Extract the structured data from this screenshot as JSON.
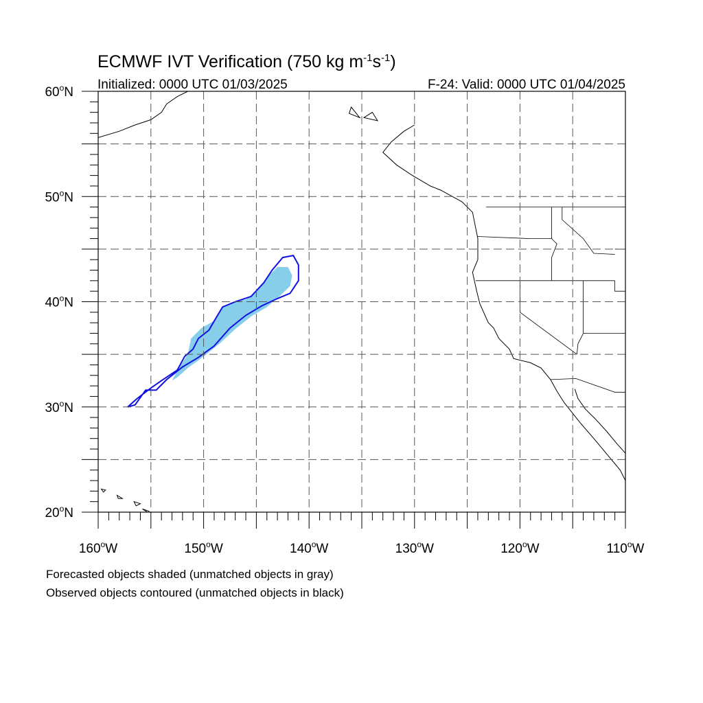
{
  "title": {
    "main_prefix": "ECMWF IVT Verification (750 kg m",
    "exp1": "-1",
    "mid": "s",
    "exp2": "-1",
    "main_suffix": ")",
    "initialized": "Initialized: 0000 UTC 01/03/2025",
    "valid": "F-24: Valid: 0000 UTC 01/04/2025"
  },
  "map": {
    "lon_range": [
      -160,
      -110
    ],
    "lat_range": [
      20,
      60
    ],
    "grid_lon_step": 5,
    "grid_lat_step": 5,
    "gridlines": "dashed gray",
    "lon_labels": [
      {
        "lon": -160,
        "text": "160",
        "hem": "W"
      },
      {
        "lon": -150,
        "text": "150",
        "hem": "W"
      },
      {
        "lon": -140,
        "text": "140",
        "hem": "W"
      },
      {
        "lon": -130,
        "text": "130",
        "hem": "W"
      },
      {
        "lon": -120,
        "text": "120",
        "hem": "W"
      },
      {
        "lon": -110,
        "text": "110",
        "hem": "W"
      }
    ],
    "lat_labels": [
      {
        "lat": 60,
        "text": "60",
        "hem": "N"
      },
      {
        "lat": 50,
        "text": "50",
        "hem": "N"
      },
      {
        "lat": 40,
        "text": "40",
        "hem": "N"
      },
      {
        "lat": 30,
        "text": "30",
        "hem": "N"
      },
      {
        "lat": 20,
        "text": "20",
        "hem": "N"
      }
    ],
    "forecast_object": {
      "color": "#87CEEB",
      "outline_lonlat": [
        [
          -153.0,
          32.5
        ],
        [
          -152.3,
          33.8
        ],
        [
          -151.5,
          35.0
        ],
        [
          -151.2,
          36.5
        ],
        [
          -150.2,
          37.5
        ],
        [
          -149.0,
          38.2
        ],
        [
          -148.2,
          39.5
        ],
        [
          -147.2,
          40.0
        ],
        [
          -146.0,
          40.2
        ],
        [
          -145.0,
          41.0
        ],
        [
          -144.0,
          42.3
        ],
        [
          -143.0,
          43.3
        ],
        [
          -142.0,
          43.3
        ],
        [
          -141.6,
          42.5
        ],
        [
          -141.8,
          41.5
        ],
        [
          -142.8,
          40.5
        ],
        [
          -144.0,
          39.5
        ],
        [
          -145.5,
          38.6
        ],
        [
          -147.0,
          37.4
        ],
        [
          -148.5,
          36.0
        ],
        [
          -150.0,
          34.8
        ],
        [
          -151.5,
          33.7
        ],
        [
          -152.5,
          32.8
        ]
      ]
    },
    "observed_object": {
      "color": "#1010e0",
      "outline_lonlat": [
        [
          -157.2,
          30.0
        ],
        [
          -156.3,
          30.8
        ],
        [
          -155.0,
          31.8
        ],
        [
          -154.0,
          32.5
        ],
        [
          -152.5,
          33.5
        ],
        [
          -151.8,
          34.8
        ],
        [
          -151.0,
          35.5
        ],
        [
          -150.5,
          36.5
        ],
        [
          -149.5,
          37.3
        ],
        [
          -148.8,
          38.5
        ],
        [
          -148.2,
          39.5
        ],
        [
          -147.0,
          40.0
        ],
        [
          -145.5,
          40.5
        ],
        [
          -144.3,
          41.8
        ],
        [
          -143.5,
          43.0
        ],
        [
          -142.5,
          44.2
        ],
        [
          -141.5,
          44.4
        ],
        [
          -141.0,
          43.5
        ],
        [
          -141.0,
          42.0
        ],
        [
          -141.8,
          40.8
        ],
        [
          -143.0,
          40.3
        ],
        [
          -144.5,
          39.6
        ],
        [
          -146.0,
          38.7
        ],
        [
          -147.5,
          37.5
        ],
        [
          -149.0,
          35.8
        ],
        [
          -150.5,
          34.7
        ],
        [
          -152.0,
          33.8
        ],
        [
          -153.5,
          32.6
        ],
        [
          -154.5,
          31.6
        ],
        [
          -155.5,
          31.6
        ],
        [
          -156.5,
          30.2
        ]
      ]
    },
    "coastline_lonlat": [
      [
        -130.0,
        56.8
      ],
      [
        -131.0,
        56.2
      ],
      [
        -132.2,
        55.2
      ],
      [
        -133.0,
        54.2
      ],
      [
        -131.7,
        53.0
      ],
      [
        -130.2,
        52.0
      ],
      [
        -128.5,
        51.0
      ],
      [
        -127.5,
        50.6
      ],
      [
        -125.5,
        49.5
      ],
      [
        -124.5,
        48.5
      ],
      [
        -124.2,
        47.0
      ],
      [
        -124.0,
        46.0
      ],
      [
        -124.0,
        44.0
      ],
      [
        -124.5,
        42.8
      ],
      [
        -124.1,
        41.0
      ],
      [
        -123.8,
        39.8
      ],
      [
        -123.0,
        38.0
      ],
      [
        -122.5,
        37.5
      ],
      [
        -122.0,
        36.5
      ],
      [
        -121.0,
        35.5
      ],
      [
        -120.6,
        34.6
      ],
      [
        -119.0,
        34.2
      ],
      [
        -118.0,
        33.7
      ],
      [
        -117.1,
        32.6
      ],
      [
        -116.5,
        31.5
      ],
      [
        -115.8,
        30.4
      ],
      [
        -114.3,
        28.5
      ],
      [
        -113.0,
        27.0
      ],
      [
        -112.0,
        25.8
      ],
      [
        -110.5,
        24.0
      ],
      [
        -110.0,
        23.0
      ]
    ],
    "alaska_coast_lonlat": [
      [
        -160.0,
        55.6
      ],
      [
        -158.0,
        56.2
      ],
      [
        -156.5,
        56.8
      ],
      [
        -155.0,
        57.3
      ],
      [
        -154.0,
        58.0
      ],
      [
        -153.5,
        58.8
      ],
      [
        -152.5,
        59.5
      ],
      [
        -151.5,
        60.0
      ]
    ],
    "gulf_california_lonlat": [
      [
        -114.8,
        31.7
      ],
      [
        -114.5,
        30.8
      ],
      [
        -113.8,
        29.8
      ],
      [
        -112.8,
        28.8
      ],
      [
        -111.8,
        27.7
      ],
      [
        -110.8,
        26.5
      ],
      [
        -110.0,
        25.6
      ]
    ],
    "borders_lonlat": [
      [
        [
          -123.2,
          49.0
        ],
        [
          -110.0,
          49.0
        ]
      ],
      [
        [
          -124.2,
          42.0
        ],
        [
          -117.0,
          42.0
        ],
        [
          -111.0,
          42.0
        ]
      ],
      [
        [
          -120.0,
          42.0
        ],
        [
          -120.0,
          39.0
        ],
        [
          -114.6,
          35.0
        ]
      ],
      [
        [
          -117.0,
          49.0
        ],
        [
          -117.0,
          46.0
        ],
        [
          -116.5,
          45.5
        ],
        [
          -117.0,
          44.2
        ],
        [
          -117.0,
          42.0
        ]
      ],
      [
        [
          -116.0,
          49.0
        ],
        [
          -116.0,
          47.8
        ],
        [
          -114.0,
          46.0
        ],
        [
          -113.0,
          44.6
        ],
        [
          -111.0,
          44.5
        ]
      ],
      [
        [
          -124.0,
          46.2
        ],
        [
          -119.0,
          46.0
        ],
        [
          -117.0,
          46.0
        ]
      ],
      [
        [
          -114.0,
          42.0
        ],
        [
          -114.0,
          37.0
        ],
        [
          -114.5,
          36.0
        ],
        [
          -114.6,
          35.0
        ]
      ],
      [
        [
          -114.0,
          37.0
        ],
        [
          -110.0,
          37.0
        ]
      ],
      [
        [
          -117.1,
          32.6
        ],
        [
          -114.7,
          32.7
        ],
        [
          -111.0,
          31.4
        ],
        [
          -110.0,
          31.4
        ]
      ],
      [
        [
          -111.0,
          45.0
        ],
        [
          -110.0,
          45.0
        ]
      ],
      [
        [
          -111.0,
          42.0
        ],
        [
          -111.0,
          41.0
        ],
        [
          -110.0,
          41.0
        ]
      ]
    ],
    "islands_lonlat": [
      [
        [
          -155.8,
          20.3
        ],
        [
          -155.2,
          20.1
        ],
        [
          -155.0,
          19.8
        ]
      ],
      [
        [
          -156.6,
          21.0
        ],
        [
          -156.0,
          20.8
        ],
        [
          -156.4,
          20.6
        ]
      ],
      [
        [
          -158.2,
          21.6
        ],
        [
          -157.7,
          21.3
        ],
        [
          -158.1,
          21.3
        ]
      ],
      [
        [
          -159.7,
          22.2
        ],
        [
          -159.3,
          22.1
        ],
        [
          -159.5,
          21.9
        ]
      ],
      [
        [
          -134.0,
          58.0
        ],
        [
          -133.5,
          57.2
        ],
        [
          -134.8,
          57.5
        ]
      ],
      [
        [
          -136.0,
          58.5
        ],
        [
          -135.2,
          57.5
        ],
        [
          -136.2,
          57.9
        ]
      ]
    ]
  },
  "footnotes": {
    "line1": "Forecasted objects shaded (unmatched objects in gray)",
    "line2": "Observed objects contoured (unmatched objects in black)"
  }
}
